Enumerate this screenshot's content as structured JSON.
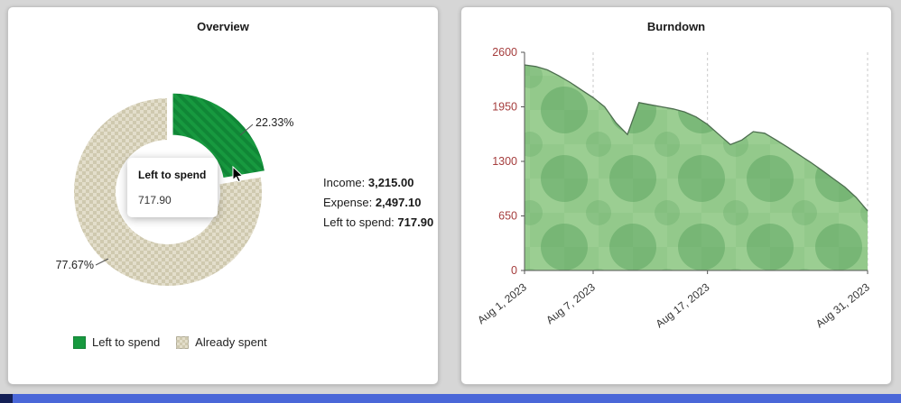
{
  "colors": {
    "page_bg": "#d6d6d6",
    "bottom_bar": "#4a67d8",
    "donut_green": "#17993f",
    "donut_beige": "#ddd8c2",
    "area_fill": "#9bce92",
    "area_line": "#4d6e4f",
    "y_axis_label": "#a53d3d",
    "x_axis_label": "#333333"
  },
  "overview_card": {
    "title": "Overview",
    "tooltip": {
      "title": "Left to spend",
      "value": "717.90"
    },
    "slice_labels": {
      "green": "22.33%",
      "beige": "77.67%"
    },
    "stats": [
      {
        "label": "Income: ",
        "value": "3,215.00"
      },
      {
        "label": "Expense: ",
        "value": "2,497.10"
      },
      {
        "label": "Left to spend: ",
        "value": "717.90"
      }
    ],
    "legend": [
      {
        "label": "Left to spend"
      },
      {
        "label": "Already spent"
      }
    ]
  },
  "burndown_card": {
    "title": "Burndown"
  },
  "chart_data": [
    {
      "type": "pie",
      "title": "Overview",
      "labels": [
        "Left to spend",
        "Already spent"
      ],
      "values": [
        22.33,
        77.67
      ],
      "colors": [
        "#17993f",
        "#ddd8c2"
      ],
      "center_label": {
        "title": "Left to spend",
        "value": "717.90"
      },
      "callout_labels": [
        "22.33%",
        "77.67%"
      ],
      "legend_position": "bottom"
    },
    {
      "type": "area",
      "title": "Burndown",
      "x_tick_labels": [
        "Aug 1, 2023",
        "Aug 7, 2023",
        "Aug 17, 2023",
        "Aug 31, 2023"
      ],
      "x_tick_positions": [
        0,
        6,
        16,
        30
      ],
      "y_ticks": [
        0,
        650,
        1300,
        1950,
        2600
      ],
      "ylim": [
        0,
        2600
      ],
      "grid": "dashed-vertical",
      "values": [
        2450,
        2430,
        2390,
        2320,
        2240,
        2150,
        2060,
        1950,
        1760,
        1620,
        2000,
        1975,
        1950,
        1925,
        1890,
        1830,
        1740,
        1620,
        1500,
        1555,
        1655,
        1635,
        1555,
        1470,
        1380,
        1290,
        1195,
        1095,
        995,
        870,
        710
      ]
    }
  ]
}
